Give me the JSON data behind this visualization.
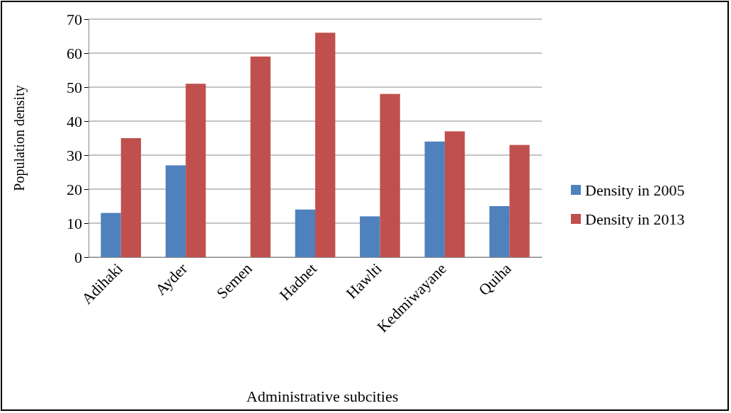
{
  "chart_data": {
    "type": "bar",
    "xlabel": "Administrative subcities",
    "ylabel": "Population density",
    "categories": [
      "Adihaki",
      "Ayder",
      "Semen",
      "Hadnet",
      "Hawlti",
      "Kedmiwayane",
      "Quiha"
    ],
    "series": [
      {
        "name": "Density in 2005",
        "color": "#4f81bd",
        "values": [
          13,
          27,
          null,
          14,
          12,
          34,
          15
        ]
      },
      {
        "name": "Density in 2013",
        "color": "#c0504d",
        "values": [
          35,
          51,
          59,
          66,
          48,
          37,
          33
        ]
      }
    ],
    "ylim": [
      0,
      70
    ],
    "yticks": [
      0,
      10,
      20,
      30,
      40,
      50,
      60,
      70
    ],
    "grid": "y",
    "legend": "right"
  }
}
